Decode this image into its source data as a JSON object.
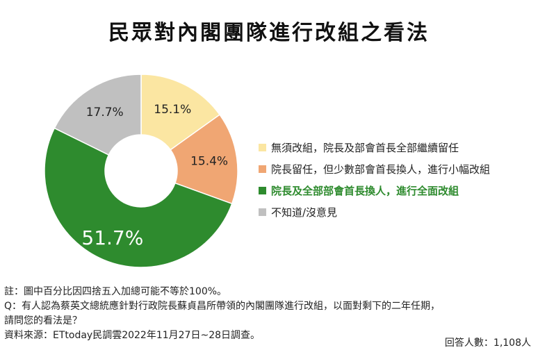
{
  "chart_data": {
    "type": "donut",
    "title": "民眾對內閣團隊進行改組之看法",
    "slices": [
      {
        "label": "無須改組，院長及部會首長全部繼續留任",
        "value": 15.1,
        "display": "15.1%",
        "color": "#fbe6a2"
      },
      {
        "label": "院長留任，但少數部會首長換人，進行小幅改組",
        "value": 15.4,
        "display": "15.4%",
        "color": "#f0a673"
      },
      {
        "label": "院長及全部部會首長換人，進行全面改組",
        "value": 51.7,
        "display": "51.7%",
        "color": "#2e8b2e"
      },
      {
        "label": "不知道/沒意見",
        "value": 17.7,
        "display": "17.7%",
        "color": "#c0c0c0"
      }
    ],
    "legend_position": "right",
    "highlight_color": "#2e8b2e"
  },
  "notes": {
    "note": "註：圖中百分比因四捨五入加總可能不等於100%。",
    "question_line1": "Q：有人認為蔡英文總統應針對行政院長蘇貞昌所帶領的內閣團隊進行改組，以面對剩下的二年任期，",
    "question_line2": "請問您的看法是？",
    "source": "資料來源：ETtoday民調雲2022年11月27日~28日調查。",
    "respondents": "回答人數：1,108人"
  }
}
